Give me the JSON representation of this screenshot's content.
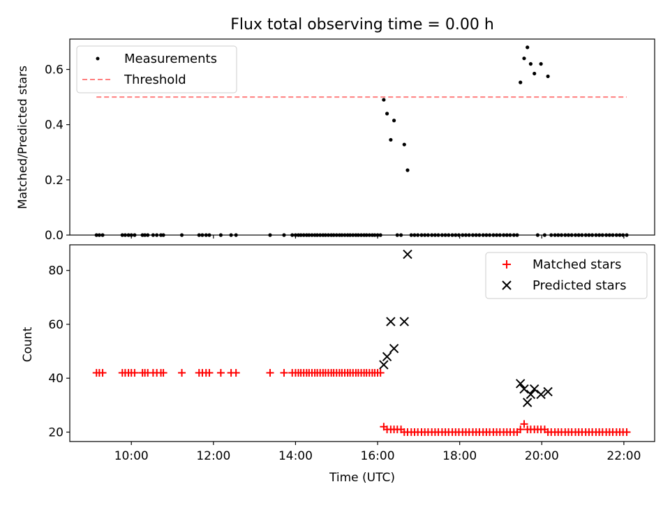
{
  "figure": {
    "title": "Flux total observing time = 0.00 h"
  },
  "colors": {
    "measurement": "#000000",
    "threshold": "#ff7f7f",
    "matched": "#ff0000",
    "predicted": "#000000"
  },
  "chart_data": [
    {
      "type": "scatter",
      "panel": "top",
      "title": "Flux total observing time = 0.00 h",
      "xlabel": "",
      "ylabel": "Matched/Predicted stars",
      "xlim": [
        8.5,
        22.75
      ],
      "ylim": [
        0.0,
        0.71
      ],
      "yticks": [
        0.0,
        0.2,
        0.4,
        0.6
      ],
      "ytick_labels": [
        "0.0",
        "0.2",
        "0.4",
        "0.6"
      ],
      "grid": false,
      "legend": {
        "placement": "top-left",
        "entries": [
          "Measurements",
          "Threshold"
        ]
      },
      "series": [
        {
          "name": "Measurements",
          "marker": "dot",
          "x": [
            9.15,
            9.22,
            9.3,
            9.78,
            9.85,
            9.93,
            10.0,
            10.08,
            10.27,
            10.33,
            10.4,
            10.53,
            10.62,
            10.72,
            10.78,
            11.23,
            11.65,
            11.73,
            11.82,
            11.9,
            12.18,
            12.43,
            12.55,
            13.38,
            13.72,
            13.92,
            14.0,
            14.07,
            14.13,
            14.2,
            14.27,
            14.33,
            14.4,
            14.47,
            14.53,
            14.6,
            14.67,
            14.73,
            14.8,
            14.87,
            14.93,
            15.0,
            15.07,
            15.13,
            15.2,
            15.27,
            15.33,
            15.4,
            15.47,
            15.53,
            15.6,
            15.67,
            15.73,
            15.8,
            15.87,
            15.93,
            16.0,
            16.07,
            16.15,
            16.23,
            16.32,
            16.4,
            16.48,
            16.57,
            16.65,
            16.73,
            16.82,
            16.9,
            16.98,
            17.07,
            17.15,
            17.23,
            17.32,
            17.4,
            17.48,
            17.57,
            17.65,
            17.73,
            17.82,
            17.9,
            17.98,
            18.07,
            18.15,
            18.23,
            18.32,
            18.4,
            18.48,
            18.57,
            18.65,
            18.73,
            18.82,
            18.9,
            18.98,
            19.07,
            19.15,
            19.23,
            19.32,
            19.4,
            19.48,
            19.57,
            19.65,
            19.73,
            19.82,
            19.9,
            19.98,
            20.07,
            20.15,
            20.23,
            20.32,
            20.4,
            20.48,
            20.57,
            20.65,
            20.73,
            20.82,
            20.9,
            20.98,
            21.07,
            21.15,
            21.23,
            21.32,
            21.4,
            21.48,
            21.57,
            21.65,
            21.73,
            21.82,
            21.9,
            21.98,
            22.07
          ],
          "y": [
            0,
            0,
            0,
            0,
            0,
            0,
            0,
            0,
            0,
            0,
            0,
            0,
            0,
            0,
            0,
            0,
            0,
            0,
            0,
            0,
            0,
            0,
            0,
            0,
            0,
            0,
            0,
            0,
            0,
            0,
            0,
            0,
            0,
            0,
            0,
            0,
            0,
            0,
            0,
            0,
            0,
            0,
            0,
            0,
            0,
            0,
            0,
            0,
            0,
            0,
            0,
            0,
            0,
            0,
            0,
            0,
            0,
            0,
            0.49,
            0.44,
            0.345,
            0.415,
            0,
            0,
            0.328,
            0.235,
            0,
            0,
            0,
            0,
            0,
            0,
            0,
            0,
            0,
            0,
            0,
            0,
            0,
            0,
            0,
            0,
            0,
            0,
            0,
            0,
            0,
            0,
            0,
            0,
            0,
            0,
            0,
            0,
            0,
            0,
            0,
            0,
            0.553,
            0.64,
            0.68,
            0.62,
            0.585,
            0,
            0.62,
            0,
            0.575,
            0,
            0,
            0,
            0,
            0,
            0,
            0,
            0,
            0,
            0,
            0,
            0,
            0,
            0,
            0,
            0,
            0,
            0,
            0,
            0,
            0,
            0,
            0
          ]
        },
        {
          "name": "Threshold",
          "marker": "dashed-line",
          "x": [
            9.15,
            22.07
          ],
          "y": [
            0.5,
            0.5
          ]
        }
      ]
    },
    {
      "type": "scatter",
      "panel": "bottom",
      "xlabel": "Time (UTC)",
      "ylabel": "Count",
      "xlim": [
        8.5,
        22.75
      ],
      "ylim": [
        16.5,
        89.5
      ],
      "xticks": [
        10,
        12,
        14,
        16,
        18,
        20,
        22
      ],
      "xtick_labels": [
        "10:00",
        "12:00",
        "14:00",
        "16:00",
        "18:00",
        "20:00",
        "22:00"
      ],
      "yticks": [
        20,
        40,
        60,
        80
      ],
      "ytick_labels": [
        "20",
        "40",
        "60",
        "80"
      ],
      "grid": false,
      "legend": {
        "placement": "top-right",
        "entries": [
          "Matched stars",
          "Predicted stars"
        ]
      },
      "series": [
        {
          "name": "Matched stars",
          "marker": "plus",
          "x": [
            9.15,
            9.22,
            9.3,
            9.78,
            9.85,
            9.93,
            10.0,
            10.08,
            10.27,
            10.33,
            10.4,
            10.53,
            10.62,
            10.72,
            10.78,
            11.23,
            11.65,
            11.73,
            11.82,
            11.9,
            12.18,
            12.43,
            12.55,
            13.38,
            13.72,
            13.92,
            14.0,
            14.07,
            14.13,
            14.2,
            14.27,
            14.33,
            14.4,
            14.47,
            14.53,
            14.6,
            14.67,
            14.73,
            14.8,
            14.87,
            14.93,
            15.0,
            15.07,
            15.13,
            15.2,
            15.27,
            15.33,
            15.4,
            15.47,
            15.53,
            15.6,
            15.67,
            15.73,
            15.8,
            15.87,
            15.93,
            16.0,
            16.07,
            16.15,
            16.23,
            16.32,
            16.4,
            16.48,
            16.57,
            16.65,
            16.73,
            16.82,
            16.9,
            16.98,
            17.07,
            17.15,
            17.23,
            17.32,
            17.4,
            17.48,
            17.57,
            17.65,
            17.73,
            17.82,
            17.9,
            17.98,
            18.07,
            18.15,
            18.23,
            18.32,
            18.4,
            18.48,
            18.57,
            18.65,
            18.73,
            18.82,
            18.9,
            18.98,
            19.07,
            19.15,
            19.23,
            19.32,
            19.4,
            19.48,
            19.57,
            19.65,
            19.73,
            19.82,
            19.9,
            19.98,
            20.07,
            20.15,
            20.23,
            20.32,
            20.4,
            20.48,
            20.57,
            20.65,
            20.73,
            20.82,
            20.9,
            20.98,
            21.07,
            21.15,
            21.23,
            21.32,
            21.4,
            21.48,
            21.57,
            21.65,
            21.73,
            21.82,
            21.9,
            21.98,
            22.07
          ],
          "y": [
            42,
            42,
            42,
            42,
            42,
            42,
            42,
            42,
            42,
            42,
            42,
            42,
            42,
            42,
            42,
            42,
            42,
            42,
            42,
            42,
            42,
            42,
            42,
            42,
            42,
            42,
            42,
            42,
            42,
            42,
            42,
            42,
            42,
            42,
            42,
            42,
            42,
            42,
            42,
            42,
            42,
            42,
            42,
            42,
            42,
            42,
            42,
            42,
            42,
            42,
            42,
            42,
            42,
            42,
            42,
            42,
            42,
            42,
            22,
            21,
            21,
            21,
            21,
            21,
            20,
            20,
            20,
            20,
            20,
            20,
            20,
            20,
            20,
            20,
            20,
            20,
            20,
            20,
            20,
            20,
            20,
            20,
            20,
            20,
            20,
            20,
            20,
            20,
            20,
            20,
            20,
            20,
            20,
            20,
            20,
            20,
            20,
            20,
            21,
            23,
            21,
            21,
            21,
            21,
            21,
            21,
            20,
            20,
            20,
            20,
            20,
            20,
            20,
            20,
            20,
            20,
            20,
            20,
            20,
            20,
            20,
            20,
            20,
            20,
            20,
            20,
            20,
            20,
            20,
            20
          ]
        },
        {
          "name": "Predicted stars",
          "marker": "x",
          "x": [
            16.15,
            16.23,
            16.32,
            16.4,
            16.65,
            16.73,
            19.48,
            19.57,
            19.65,
            19.73,
            19.82,
            19.98,
            20.15
          ],
          "y": [
            45,
            48,
            61,
            51,
            61,
            86,
            38,
            36,
            31,
            34,
            36,
            34,
            35
          ]
        }
      ]
    }
  ]
}
